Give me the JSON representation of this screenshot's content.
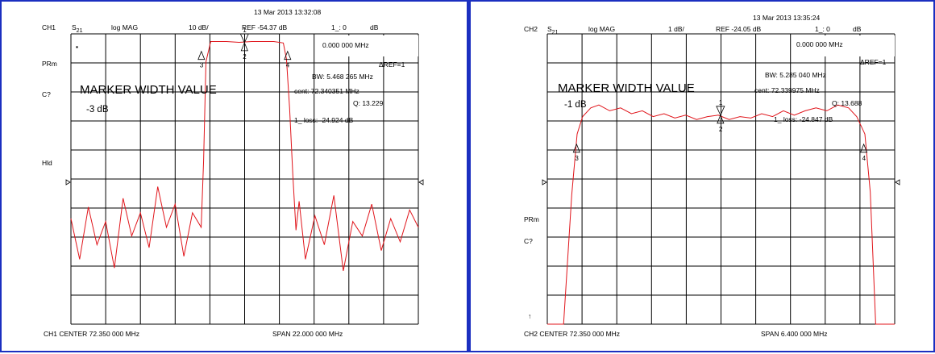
{
  "panels": [
    {
      "id": "p1",
      "timestamp": "13 Mar 2013  13:32:08",
      "channel": "CH1",
      "param": "S",
      "param_sub": "21",
      "format": "log MAG",
      "scale": "10 dB/",
      "ref": "REF -54.37 dB",
      "marker_readout": "1_: 0",
      "marker_unit": "dB",
      "marker_freq": "0.000 000 MHz",
      "ref_marker": "ΔREF=1",
      "side_labels": [
        "PRm",
        "C?",
        "Hld"
      ],
      "corner_icon": "▪",
      "title_big": "MARKER WIDTH VALUE",
      "level": "-3 dB",
      "bw": "BW:   5.468 265 MHz",
      "cent": "cent:  72.340351 MHz",
      "q": "Q: 13.229",
      "loss": "1_ loss: -24.924 dB",
      "marker_labels": [
        "1",
        "2",
        "3",
        "4"
      ],
      "center": "CH1 CENTER  72.350 000 MHz",
      "span": "SPAN   22.000 000 MHz",
      "colors": {
        "trace": "#e0151b",
        "grid": "#000000",
        "border": "#1b2fc0"
      }
    },
    {
      "id": "p2",
      "timestamp": "13 Mar 2013  13:35:24",
      "channel": "CH2",
      "param": "S",
      "param_sub": "21",
      "format": "log MAG",
      "scale": "1 dB/",
      "ref": "REF -24.05 dB",
      "marker_readout": "1_: 0",
      "marker_unit": "dB",
      "marker_freq": "0.000 000 MHz",
      "ref_marker": "ΔREF=1",
      "side_labels": [
        "PRm",
        "C?",
        "↑"
      ],
      "title_big": "MARKER WIDTH VALUE",
      "level": "-1 dB",
      "bw": "BW:   5.285 040 MHz",
      "cent": "cent:  72.339975 MHz",
      "q": "Q: 13.688",
      "loss": "1_ loss: -24.847 dB",
      "marker_labels": [
        "1",
        "2",
        "3",
        "4"
      ],
      "center": "CH2 CENTER  72.350 000 MHz",
      "span": "SPAN   6.400 000 MHz",
      "colors": {
        "trace": "#e0151b",
        "grid": "#000000",
        "border": "#1b2fc0"
      }
    }
  ],
  "chart_data": [
    {
      "type": "line",
      "title": "",
      "xlabel": "CH1 CENTER 72.350 000 MHz",
      "ylabel": "log MAG 10 dB/",
      "x_unit": "MHz",
      "xlim": [
        61.35,
        83.35
      ],
      "ylim": [
        -154.37,
        -54.37
      ],
      "grid": true,
      "series": [
        {
          "x": [
            61.35,
            61.9,
            62.45,
            63.0,
            63.55,
            64.1,
            64.65,
            65.2,
            65.75,
            66.3,
            66.85,
            67.4,
            67.95,
            68.5,
            69.05,
            69.6,
            69.75,
            69.9,
            70.2,
            70.6,
            71.2,
            72.0,
            72.8,
            73.5,
            74.2,
            74.8,
            75.0,
            75.2,
            75.4,
            75.6,
            75.8,
            76.2,
            76.8,
            77.4,
            78.0,
            78.6,
            79.2,
            79.8,
            80.4,
            81.0,
            81.6,
            82.2,
            82.8,
            83.35
          ],
          "y": [
            -118,
            -132,
            -114,
            -127,
            -119,
            -135,
            -111,
            -124,
            -116,
            -128,
            -107,
            -121,
            -113,
            -131,
            -116,
            -121,
            -98,
            -64,
            -57,
            -57,
            -57,
            -57.3,
            -57,
            -57,
            -57,
            -57.5,
            -63,
            -80,
            -103,
            -122,
            -112,
            -132,
            -117,
            -127,
            -110,
            -136,
            -119,
            -124,
            -113,
            -129,
            -118,
            -126,
            -115,
            -121
          ]
        }
      ],
      "markers": [
        {
          "label": "1",
          "x": 72.34,
          "y": -57.4
        },
        {
          "label": "2",
          "x": 72.34,
          "y": -57.4
        },
        {
          "label": "3",
          "x": 69.61,
          "y": -60.4
        },
        {
          "label": "4",
          "x": 75.07,
          "y": -60.4
        }
      ]
    },
    {
      "type": "line",
      "title": "",
      "xlabel": "CH2 CENTER 72.350 000 MHz",
      "ylabel": "log MAG 1 dB/",
      "x_unit": "MHz",
      "xlim": [
        69.15,
        75.55
      ],
      "ylim": [
        -34.05,
        -24.05
      ],
      "grid": true,
      "series": [
        {
          "x": [
            69.15,
            69.3,
            69.45,
            69.6,
            69.7,
            69.8,
            69.95,
            70.1,
            70.3,
            70.5,
            70.7,
            70.9,
            71.1,
            71.3,
            71.5,
            71.7,
            71.9,
            72.1,
            72.3,
            72.5,
            72.7,
            72.9,
            73.1,
            73.3,
            73.5,
            73.7,
            73.9,
            74.1,
            74.3,
            74.5,
            74.7,
            74.85,
            75.0,
            75.1,
            75.2,
            75.35,
            75.55
          ],
          "y": [
            -34.05,
            -34.05,
            -34.05,
            -29.6,
            -27.5,
            -26.9,
            -26.6,
            -26.5,
            -26.7,
            -26.6,
            -26.8,
            -26.7,
            -26.9,
            -26.8,
            -26.95,
            -26.85,
            -27.0,
            -26.9,
            -26.85,
            -27.0,
            -26.9,
            -26.95,
            -26.8,
            -26.9,
            -26.7,
            -26.85,
            -26.7,
            -26.6,
            -26.7,
            -26.5,
            -26.6,
            -26.9,
            -27.5,
            -29.5,
            -34.05,
            -34.05,
            -34.05
          ]
        }
      ],
      "markers": [
        {
          "label": "1",
          "x": 72.34,
          "y": -26.85
        },
        {
          "label": "2",
          "x": 72.34,
          "y": -26.85
        },
        {
          "label": "3",
          "x": 69.69,
          "y": -27.85
        },
        {
          "label": "4",
          "x": 74.98,
          "y": -27.85
        }
      ]
    }
  ]
}
